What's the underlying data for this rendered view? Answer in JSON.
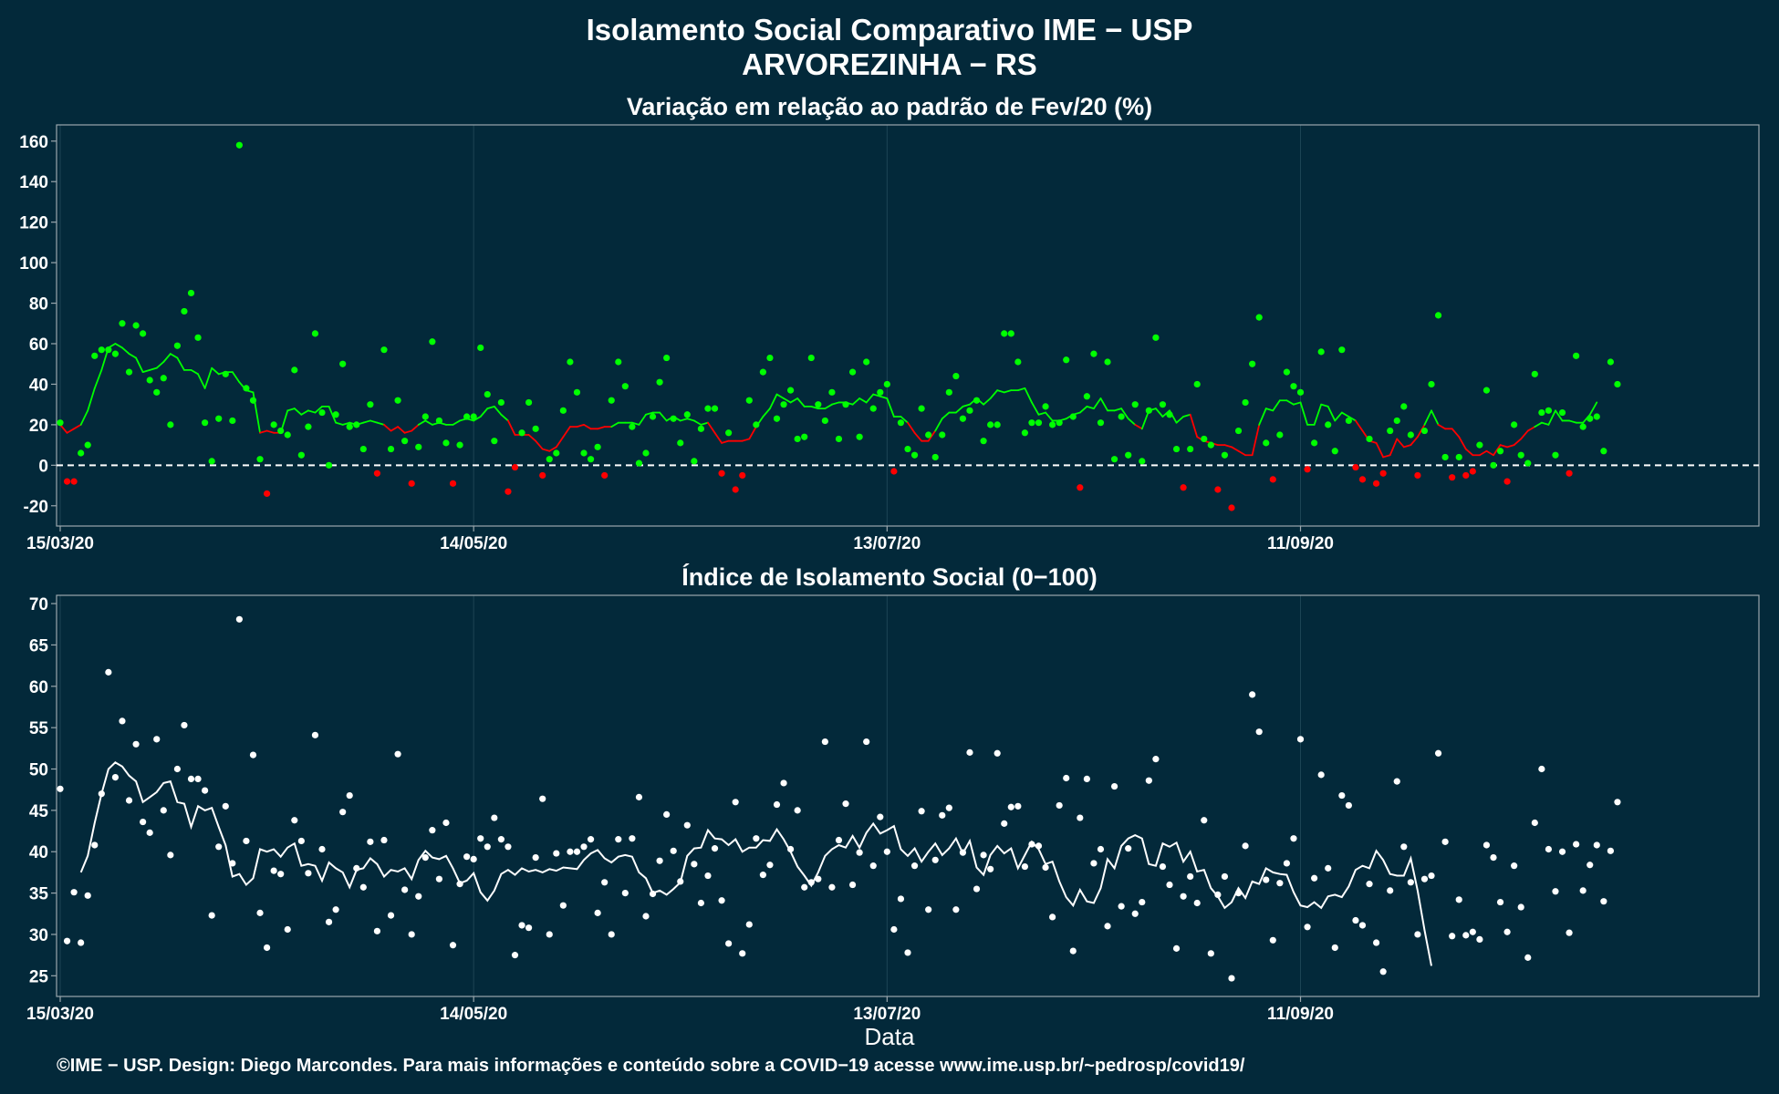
{
  "header": {
    "title": "Isolamento Social Comparativo IME − USP",
    "subtitle": "ARVOREZINHA − RS"
  },
  "footer": {
    "xlabel": "Data",
    "credits": "©IME − USP. Design: Diego Marcondes. Para mais informações e conteúdo sobre a COVID−19 acesse www.ime.usp.br/~pedrosp/covid19/"
  },
  "colors": {
    "background": "#03293a",
    "panel_border": "#9aa7ad",
    "above_baseline": "#00ff00",
    "below_baseline": "#ff0000",
    "index_series": "#ffffff"
  },
  "chart_data": [
    {
      "type": "scatter",
      "title": "Variação em relação ao padrão de Fev/20 (%)",
      "xlabel": "",
      "ylabel": "",
      "x_start": "15/03/20",
      "x_end": "16/11/20",
      "x_ticks": [
        "15/03/20",
        "14/05/20",
        "13/07/20",
        "11/09/20"
      ],
      "ylim": [
        -30,
        168
      ],
      "y_ticks": [
        -20,
        0,
        20,
        40,
        60,
        80,
        100,
        120,
        140,
        160
      ],
      "reference_line": 0,
      "grid": true,
      "series": [
        {
          "kind": "daily_points",
          "values": [
            21,
            -8,
            -8,
            6,
            10,
            54,
            57,
            57,
            55,
            70,
            46,
            69,
            65,
            42,
            36,
            43,
            20,
            59,
            76,
            85,
            63,
            21,
            2,
            23,
            45,
            22,
            158,
            38,
            32,
            3,
            -14,
            20,
            17,
            15,
            47,
            5,
            19,
            65,
            26,
            0,
            25,
            50,
            19,
            20,
            8,
            30,
            -4,
            57,
            8,
            32,
            12,
            -9,
            9,
            24,
            61,
            22,
            11,
            -9,
            10,
            24,
            24,
            58,
            35,
            12,
            31,
            -13,
            -1,
            16,
            31,
            18,
            -5,
            3,
            6,
            27,
            51,
            36,
            6,
            3,
            9,
            -5,
            32,
            51,
            39,
            19,
            1,
            6,
            24,
            41,
            53,
            23,
            11,
            25,
            2,
            18,
            28,
            28,
            -4,
            16,
            -12,
            -5,
            32,
            20,
            46,
            53,
            23,
            30,
            37,
            13,
            14,
            53,
            30,
            22,
            36,
            13,
            30,
            46,
            14,
            51,
            28,
            36,
            40,
            -3,
            21,
            8,
            5,
            28,
            15,
            4,
            15,
            36,
            44,
            23,
            27,
            32,
            12,
            20,
            20,
            65,
            65,
            51,
            16,
            21,
            21,
            29,
            20,
            21,
            52,
            24,
            -11,
            34,
            55,
            21,
            51,
            3,
            24,
            5,
            30,
            2,
            27,
            63,
            30,
            25,
            8,
            -11,
            8,
            40,
            13,
            10,
            -12,
            5,
            -21,
            17,
            31,
            50,
            73,
            11,
            -7,
            15,
            46,
            39,
            36,
            -2,
            11,
            56,
            20,
            7,
            57,
            22,
            -1,
            -7,
            13,
            -9,
            -4,
            17,
            22,
            29,
            15,
            -5,
            17,
            40,
            74,
            4,
            -6,
            4,
            -5,
            -3,
            10,
            37,
            0,
            7,
            -8,
            20,
            5,
            1,
            45,
            26,
            27,
            5,
            26,
            -4,
            54,
            19,
            23,
            24,
            7,
            51,
            40
          ]
        },
        {
          "kind": "moving_average_7d",
          "values": [
            20,
            16,
            18,
            20,
            27,
            38,
            47,
            58,
            60,
            58,
            55,
            53,
            46,
            47,
            48,
            51,
            55,
            53,
            47,
            47,
            45,
            38,
            48,
            45,
            46,
            46,
            41,
            37,
            36,
            16,
            17,
            16,
            16,
            27,
            28,
            25,
            27,
            26,
            29,
            29,
            21,
            20,
            21,
            20,
            21,
            22,
            21,
            20,
            17,
            19,
            16,
            17,
            20,
            22,
            20,
            21,
            20,
            20,
            22,
            23,
            22,
            24,
            28,
            29,
            25,
            22,
            15,
            15,
            15,
            12,
            8,
            7,
            9,
            14,
            19,
            19,
            20,
            18,
            18,
            19,
            19,
            21,
            21,
            21,
            20,
            25,
            26,
            26,
            22,
            24,
            22,
            23,
            22,
            20,
            21,
            16,
            11,
            12,
            12,
            12,
            13,
            19,
            24,
            28,
            35,
            33,
            31,
            33,
            29,
            29,
            28,
            28,
            30,
            31,
            31,
            30,
            33,
            31,
            35,
            34,
            33,
            24,
            24,
            21,
            16,
            12,
            12,
            17,
            23,
            26,
            26,
            29,
            30,
            33,
            30,
            33,
            37,
            36,
            37,
            37,
            38,
            31,
            25,
            26,
            22,
            22,
            23,
            25,
            26,
            29,
            28,
            33,
            27,
            27,
            28,
            23,
            20,
            18,
            27,
            28,
            24,
            27,
            21,
            24,
            25,
            14,
            12,
            11,
            10,
            10,
            9,
            7,
            5,
            5,
            20,
            28,
            27,
            32,
            32,
            30,
            31,
            20,
            20,
            30,
            29,
            22,
            26,
            24,
            22,
            17,
            12,
            11,
            4,
            5,
            13,
            9,
            10,
            14,
            20,
            27,
            20,
            18,
            18,
            14,
            8,
            5,
            5,
            7,
            5,
            10,
            9,
            10,
            13,
            17,
            19,
            21,
            20,
            27,
            22,
            22,
            21,
            21,
            25,
            31
          ]
        }
      ]
    },
    {
      "type": "scatter",
      "title": "Índice de Isolamento Social (0−100)",
      "xlabel": "Data",
      "ylabel": "",
      "x_start": "15/03/20",
      "x_end": "16/11/20",
      "x_ticks": [
        "15/03/20",
        "14/05/20",
        "13/07/20",
        "11/09/20"
      ],
      "ylim": [
        22.5,
        71
      ],
      "y_ticks": [
        25,
        30,
        35,
        40,
        45,
        50,
        55,
        60,
        65,
        70
      ],
      "grid": true,
      "series": [
        {
          "kind": "daily_points",
          "values": [
            47.6,
            29.2,
            35.1,
            29,
            34.7,
            40.8,
            47,
            61.7,
            49,
            55.8,
            46.2,
            53,
            43.6,
            42.3,
            53.6,
            45,
            39.6,
            50,
            55.3,
            48.8,
            48.8,
            47.4,
            32.3,
            40.6,
            45.5,
            38.6,
            68.1,
            41.3,
            51.7,
            32.6,
            28.4,
            37.7,
            37.3,
            30.6,
            43.8,
            41.3,
            37.4,
            54.1,
            40.3,
            31.5,
            33,
            44.8,
            46.8,
            38,
            35.7,
            41.2,
            30.4,
            41.4,
            32.3,
            51.8,
            35.4,
            30,
            34.6,
            39.3,
            42.6,
            36.7,
            43.5,
            28.7,
            36.1,
            39.4,
            39.1,
            41.6,
            40.6,
            44.1,
            41.5,
            40.6,
            27.5,
            31.1,
            30.8,
            39.3,
            46.4,
            30,
            39.8,
            33.5,
            40,
            40,
            40.6,
            41.5,
            32.6,
            36.3,
            30,
            41.5,
            35,
            41.6,
            46.6,
            32.2,
            34.9,
            38.9,
            44.5,
            40.1,
            36.4,
            43.2,
            38.5,
            33.8,
            37.1,
            40.4,
            34.1,
            28.9,
            46,
            27.7,
            31.2,
            41.6,
            37.2,
            38.4,
            45.7,
            48.3,
            40.3,
            45,
            35.7,
            36.3,
            36.7,
            53.3,
            35.7,
            41.4,
            45.8,
            36,
            39.9,
            53.3,
            38.3,
            44.2,
            40,
            30.6,
            34.3,
            27.8,
            38.3,
            44.9,
            33,
            39,
            44.4,
            45.3,
            33,
            39.9,
            52,
            35.5,
            39.6,
            37.9,
            51.9,
            43.4,
            45.4,
            45.5,
            38.2,
            40.9,
            40.7,
            38.1,
            32.1,
            45.6,
            48.9,
            28,
            44.1,
            48.8,
            38.6,
            40.3,
            31,
            47.9,
            33.4,
            40.4,
            32.5,
            33.9,
            48.6,
            51.2,
            38.2,
            36,
            28.3,
            34.6,
            37,
            33.8,
            43.8,
            27.7,
            34.8,
            37,
            24.7,
            35,
            40.7,
            59,
            54.5,
            36.6,
            29.3,
            36.2,
            38.6,
            41.6,
            53.6,
            30.9,
            36.8,
            49.3,
            38,
            28.4,
            46.8,
            45.6,
            31.7,
            31.1,
            36.1,
            29,
            25.5,
            35.3,
            48.5,
            40.6,
            36.3,
            30,
            36.7,
            37.1,
            51.9,
            41.2,
            29.8,
            34.2,
            29.9,
            30.3,
            29.4,
            40.8,
            39.3,
            33.9,
            30.3,
            38.3,
            33.3,
            27.2,
            43.5,
            50,
            40.3,
            35.2,
            40,
            30.2,
            40.9,
            35.3,
            38.4,
            40.8,
            34,
            40.1,
            46
          ]
        },
        {
          "kind": "moving_average_7d",
          "start_index": 3,
          "values": [
            37.5,
            39.5,
            43.5,
            47,
            50,
            50.8,
            50.3,
            49.2,
            48.5,
            46,
            46.6,
            47.2,
            48.3,
            48.5,
            46,
            45.8,
            43,
            45.5,
            45,
            45.3,
            43,
            40.8,
            37,
            37.3,
            36,
            36.8,
            40.3,
            40,
            40.3,
            39.4,
            40.5,
            41,
            38.3,
            38.5,
            38.3,
            36.5,
            38.7,
            38,
            37.5,
            35.7,
            37.8,
            38,
            39.2,
            38.5,
            37,
            37.8,
            37.6,
            38,
            36.7,
            39,
            40.1,
            39.3,
            39.1,
            39.5,
            38,
            36.2,
            36.5,
            37.4,
            35.1,
            34.1,
            35.3,
            37.3,
            37.8,
            37.2,
            38,
            37.6,
            37.8,
            37.5,
            37.9,
            37.7,
            38.1,
            38,
            37.9,
            39,
            39.8,
            40.2,
            39.2,
            38.7,
            39.4,
            39.6,
            39.4,
            37.5,
            36.8,
            35,
            35.3,
            34.8,
            35.5,
            36.3,
            39.5,
            40.4,
            40.5,
            42.6,
            41.6,
            41.5,
            40.8,
            41.5,
            40,
            40.5,
            40.5,
            41.4,
            41.3,
            42.7,
            41.5,
            40,
            38.2,
            37.1,
            35.9,
            37.5,
            39.5,
            40.3,
            40.8,
            40.5,
            41.9,
            40.5,
            42.3,
            43.4,
            42.2,
            42.6,
            43.1,
            40.3,
            39.5,
            40.4,
            38.8,
            40,
            41,
            39.6,
            40.4,
            41.6,
            39.8,
            41.3,
            38.1,
            37.2,
            39.6,
            40.7,
            39.8,
            40.4,
            38,
            39.6,
            41.2,
            40.3,
            38.5,
            38.8,
            36.4,
            34.5,
            33.5,
            35.4,
            34,
            33.8,
            35.6,
            39.1,
            38,
            40.7,
            41.6,
            42,
            41.6,
            38.5,
            38.3,
            41,
            40.6,
            41.1,
            38.8,
            40,
            37.6,
            37.8,
            35.6,
            34.6,
            33.2,
            33.9,
            35.6,
            34.4,
            36.4,
            36.1,
            38,
            37.5,
            37.3,
            37.2,
            35.1,
            33.5,
            33.3,
            33.9,
            33.2,
            34.6,
            34.8,
            34.5,
            35.8,
            37.8,
            38.3,
            38,
            40.1,
            39,
            37.3,
            37.1,
            37.1,
            39.2,
            35.3,
            30.5,
            26.2
          ]
        }
      ]
    }
  ]
}
